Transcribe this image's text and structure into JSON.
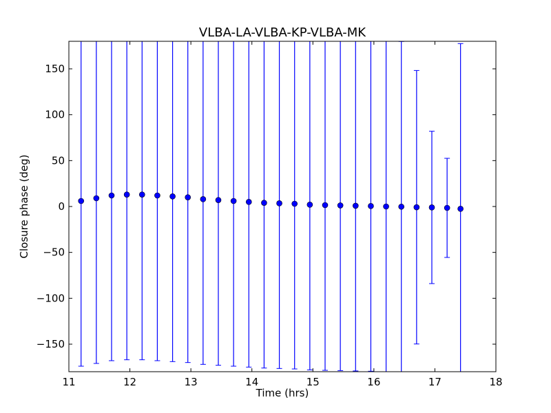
{
  "chart_data": {
    "type": "scatter",
    "title": "VLBA-LA-VLBA-KP-VLBA-MK",
    "xlabel": "Time (hrs)",
    "ylabel": "Closure phase (deg)",
    "xlim": [
      11,
      18
    ],
    "ylim": [
      -180,
      180
    ],
    "xticks": [
      11,
      12,
      13,
      14,
      15,
      16,
      17,
      18
    ],
    "xtick_labels": [
      "11",
      "12",
      "13",
      "14",
      "15",
      "16",
      "17",
      "18"
    ],
    "yticks": [
      -150,
      -100,
      -50,
      0,
      50,
      100,
      150
    ],
    "ytick_labels": [
      "−150",
      "−100",
      "−50",
      "0",
      "50",
      "100",
      "150"
    ],
    "grid": false,
    "legend": "none",
    "marker_color": "#0000ff",
    "series": [
      {
        "x": [
          11.2,
          11.45,
          11.7,
          11.95,
          12.2,
          12.45,
          12.7,
          12.95,
          13.2,
          13.45,
          13.7,
          13.95,
          14.2,
          14.45,
          14.7,
          14.95,
          15.2,
          15.45,
          15.7,
          15.95,
          16.2,
          16.45,
          16.7,
          16.95,
          17.2,
          17.42
        ],
        "y": [
          6,
          9,
          12,
          13,
          13,
          12,
          11,
          10,
          8,
          7,
          6,
          5,
          4,
          3.5,
          3,
          2,
          1.5,
          1.2,
          0.8,
          0.5,
          0,
          -0.2,
          -0.8,
          -1,
          -1.5,
          -2.5
        ],
        "yerr_lower": [
          180,
          180,
          180,
          180,
          180,
          180,
          180,
          180,
          180,
          180,
          180,
          180,
          180,
          180,
          180,
          180,
          180,
          180,
          180,
          180,
          180,
          180,
          149,
          83,
          54,
          180
        ],
        "yerr_upper": [
          180,
          180,
          180,
          180,
          180,
          180,
          180,
          180,
          180,
          180,
          180,
          180,
          180,
          180,
          180,
          180,
          180,
          180,
          180,
          180,
          180,
          180,
          149,
          83,
          54,
          180
        ]
      }
    ]
  }
}
